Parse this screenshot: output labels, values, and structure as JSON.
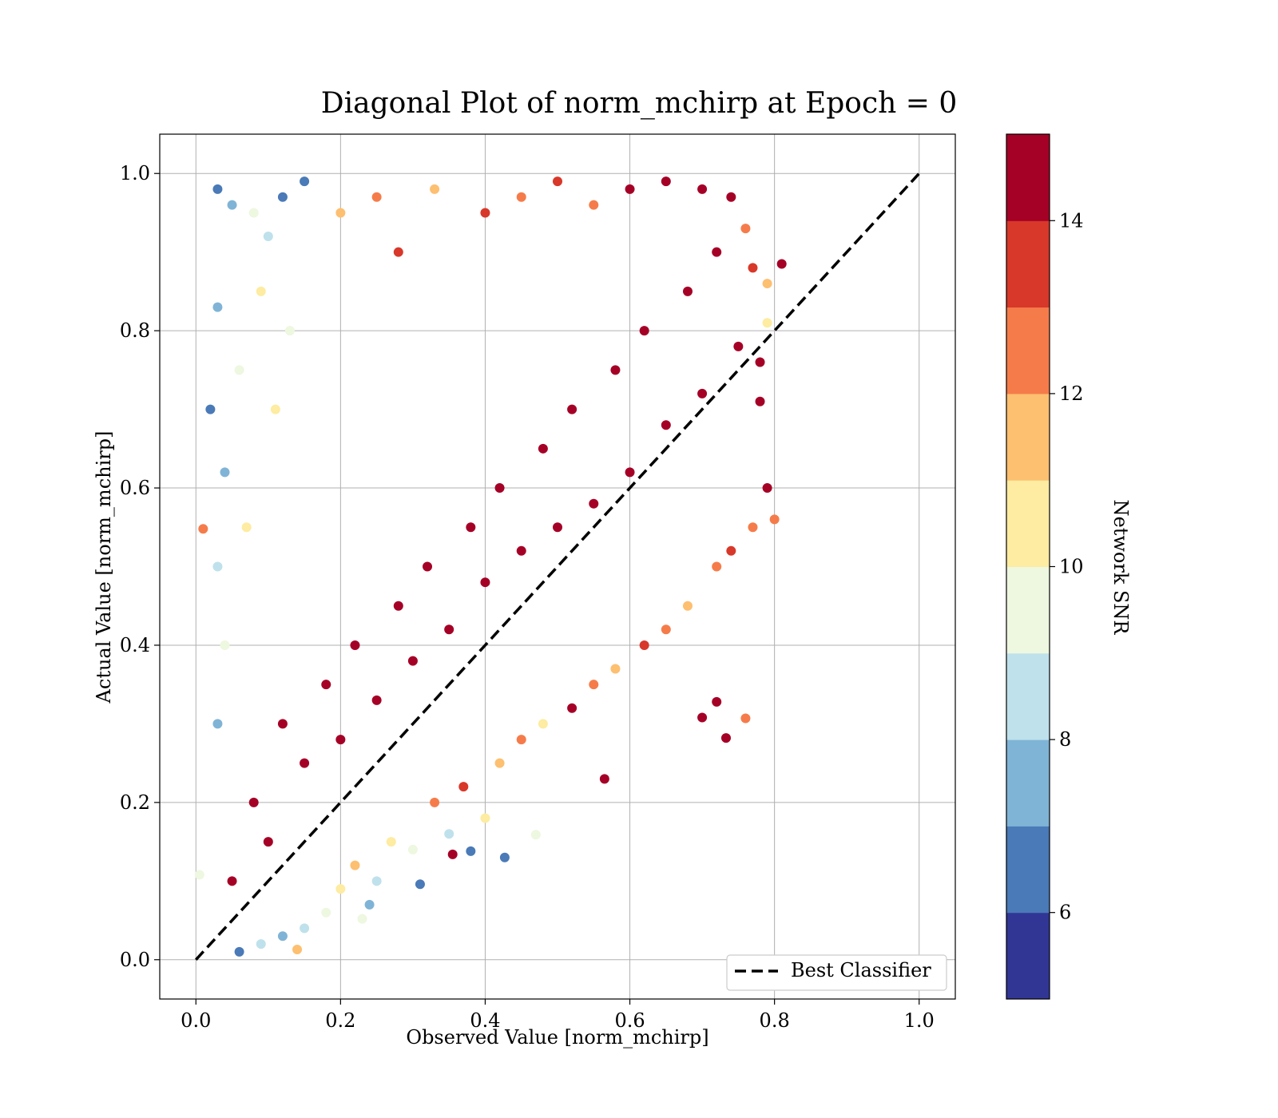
{
  "chart_data": {
    "type": "scatter",
    "title": "Diagonal Plot of norm_mchirp at Epoch = 0",
    "xlabel": "Observed Value [norm_mchirp]",
    "ylabel": "Actual Value [norm_mchirp]",
    "xlim": [
      -0.05,
      1.05
    ],
    "ylim": [
      -0.05,
      1.05
    ],
    "xticks": [
      0.0,
      0.2,
      0.4,
      0.6,
      0.8,
      1.0
    ],
    "yticks": [
      0.0,
      0.2,
      0.4,
      0.6,
      0.8,
      1.0
    ],
    "xtick_labels": [
      "0.0",
      "0.2",
      "0.4",
      "0.6",
      "0.8",
      "1.0"
    ],
    "ytick_labels": [
      "0.0",
      "0.2",
      "0.4",
      "0.6",
      "0.8",
      "1.0"
    ],
    "grid": true,
    "legend": {
      "position": "lower-right",
      "entries": [
        {
          "label": "Best Classifier",
          "style": "dashed",
          "color": "#000000"
        }
      ]
    },
    "reference_line": {
      "name": "Best Classifier",
      "x": [
        0.0,
        1.0
      ],
      "y": [
        0.0,
        1.0
      ]
    },
    "colorbar": {
      "label": "Network SNR",
      "range": [
        5,
        15
      ],
      "ticks": [
        6,
        8,
        10,
        12,
        14
      ],
      "tick_labels": [
        "6",
        "8",
        "10",
        "12",
        "14"
      ],
      "bins": [
        {
          "from": 5,
          "to": 6,
          "color": "#313695"
        },
        {
          "from": 6,
          "to": 7,
          "color": "#4a7ab7"
        },
        {
          "from": 7,
          "to": 8,
          "color": "#80b4d6"
        },
        {
          "from": 8,
          "to": 9,
          "color": "#bfe1ec"
        },
        {
          "from": 9,
          "to": 10,
          "color": "#eef7e0"
        },
        {
          "from": 10,
          "to": 11,
          "color": "#fdeca1"
        },
        {
          "from": 11,
          "to": 12,
          "color": "#fdbf70"
        },
        {
          "from": 12,
          "to": 13,
          "color": "#f57c4a"
        },
        {
          "from": 13,
          "to": 14,
          "color": "#d8382a"
        },
        {
          "from": 14,
          "to": 15,
          "color": "#a50026"
        }
      ]
    },
    "series": [
      {
        "description_points": "representative sample of the dense scatter cloud",
        "points": [
          [
            0.05,
            0.1,
            15
          ],
          [
            0.08,
            0.2,
            15
          ],
          [
            0.1,
            0.15,
            15
          ],
          [
            0.12,
            0.3,
            15
          ],
          [
            0.15,
            0.25,
            15
          ],
          [
            0.18,
            0.35,
            15
          ],
          [
            0.2,
            0.28,
            15
          ],
          [
            0.22,
            0.4,
            15
          ],
          [
            0.25,
            0.33,
            15
          ],
          [
            0.28,
            0.45,
            15
          ],
          [
            0.3,
            0.38,
            15
          ],
          [
            0.32,
            0.5,
            15
          ],
          [
            0.35,
            0.42,
            15
          ],
          [
            0.38,
            0.55,
            15
          ],
          [
            0.4,
            0.48,
            15
          ],
          [
            0.42,
            0.6,
            15
          ],
          [
            0.45,
            0.52,
            15
          ],
          [
            0.48,
            0.65,
            15
          ],
          [
            0.5,
            0.55,
            15
          ],
          [
            0.52,
            0.7,
            15
          ],
          [
            0.55,
            0.58,
            15
          ],
          [
            0.58,
            0.75,
            15
          ],
          [
            0.6,
            0.62,
            15
          ],
          [
            0.62,
            0.8,
            15
          ],
          [
            0.65,
            0.68,
            15
          ],
          [
            0.68,
            0.85,
            15
          ],
          [
            0.7,
            0.72,
            15
          ],
          [
            0.72,
            0.9,
            15
          ],
          [
            0.75,
            0.78,
            15
          ],
          [
            0.81,
            0.885,
            15
          ],
          [
            0.78,
            0.76,
            15
          ],
          [
            0.78,
            0.71,
            15
          ],
          [
            0.8,
            0.56,
            12
          ],
          [
            0.76,
            0.307,
            12
          ],
          [
            0.733,
            0.282,
            15
          ],
          [
            0.72,
            0.328,
            15
          ],
          [
            0.7,
            0.308,
            15
          ],
          [
            0.565,
            0.23,
            15
          ],
          [
            0.47,
            0.159,
            9
          ],
          [
            0.427,
            0.13,
            6
          ],
          [
            0.38,
            0.138,
            6
          ],
          [
            0.355,
            0.134,
            15
          ],
          [
            0.31,
            0.096,
            6
          ],
          [
            0.23,
            0.052,
            9
          ],
          [
            0.14,
            0.013,
            11
          ],
          [
            0.01,
            0.548,
            12
          ],
          [
            0.005,
            0.108,
            9
          ],
          [
            0.03,
            0.98,
            6
          ],
          [
            0.05,
            0.96,
            7
          ],
          [
            0.08,
            0.95,
            9
          ],
          [
            0.1,
            0.92,
            8
          ],
          [
            0.12,
            0.97,
            6
          ],
          [
            0.15,
            0.99,
            6
          ],
          [
            0.03,
            0.83,
            7
          ],
          [
            0.02,
            0.7,
            6
          ],
          [
            0.04,
            0.62,
            7
          ],
          [
            0.03,
            0.5,
            8
          ],
          [
            0.04,
            0.4,
            9
          ],
          [
            0.03,
            0.3,
            7
          ],
          [
            0.06,
            0.75,
            9
          ],
          [
            0.09,
            0.85,
            10
          ],
          [
            0.11,
            0.7,
            10
          ],
          [
            0.13,
            0.8,
            9
          ],
          [
            0.07,
            0.55,
            10
          ],
          [
            0.2,
            0.95,
            11
          ],
          [
            0.25,
            0.97,
            12
          ],
          [
            0.28,
            0.9,
            13
          ],
          [
            0.33,
            0.98,
            11
          ],
          [
            0.4,
            0.95,
            13
          ],
          [
            0.45,
            0.97,
            12
          ],
          [
            0.5,
            0.99,
            13
          ],
          [
            0.55,
            0.96,
            12
          ],
          [
            0.6,
            0.98,
            14
          ],
          [
            0.65,
            0.99,
            15
          ],
          [
            0.7,
            0.98,
            15
          ],
          [
            0.74,
            0.97,
            15
          ],
          [
            0.76,
            0.93,
            12
          ],
          [
            0.77,
            0.88,
            13
          ],
          [
            0.79,
            0.86,
            11
          ],
          [
            0.79,
            0.81,
            10
          ],
          [
            0.22,
            0.12,
            11
          ],
          [
            0.25,
            0.1,
            8
          ],
          [
            0.27,
            0.15,
            10
          ],
          [
            0.33,
            0.2,
            12
          ],
          [
            0.37,
            0.22,
            13
          ],
          [
            0.42,
            0.25,
            11
          ],
          [
            0.45,
            0.28,
            12
          ],
          [
            0.48,
            0.3,
            10
          ],
          [
            0.52,
            0.32,
            14
          ],
          [
            0.55,
            0.35,
            12
          ],
          [
            0.58,
            0.37,
            11
          ],
          [
            0.62,
            0.4,
            13
          ],
          [
            0.65,
            0.42,
            12
          ],
          [
            0.68,
            0.45,
            11
          ],
          [
            0.72,
            0.5,
            12
          ],
          [
            0.74,
            0.52,
            13
          ],
          [
            0.77,
            0.55,
            12
          ],
          [
            0.79,
            0.6,
            14
          ],
          [
            0.18,
            0.06,
            9
          ],
          [
            0.15,
            0.04,
            8
          ],
          [
            0.12,
            0.03,
            7
          ],
          [
            0.09,
            0.02,
            8
          ],
          [
            0.06,
            0.01,
            6
          ],
          [
            0.2,
            0.09,
            10
          ],
          [
            0.24,
            0.07,
            7
          ],
          [
            0.3,
            0.14,
            9
          ],
          [
            0.35,
            0.16,
            8
          ],
          [
            0.4,
            0.18,
            10
          ]
        ]
      }
    ]
  }
}
